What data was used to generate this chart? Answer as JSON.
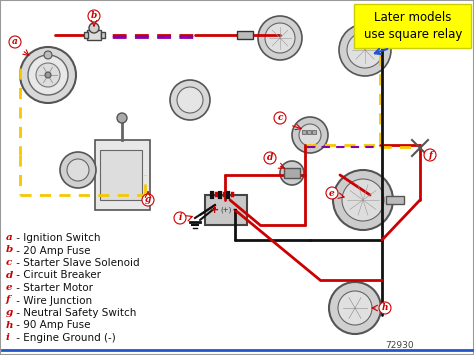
{
  "background_color": "#f5f5f0",
  "note_box_color": "#ffff00",
  "note_text": "Later models\nuse square relay",
  "note_text_color": "#000000",
  "legend_items": [
    "a - Ignition Switch",
    "b - 20 Amp Fuse",
    "c - Starter Slave Solenoid",
    "d - Circuit Breaker",
    "e - Starter Motor",
    "f - Wire Junction",
    "g - Neutral Safety Switch",
    "h - 90 Amp Fuse",
    "i - Engine Ground (-)"
  ],
  "wire_red": "#cc0000",
  "wire_yellow": "#f5c800",
  "wire_purple": "#8800aa",
  "wire_black": "#111111",
  "wire_blue": "#2255cc",
  "label_color": "#cc0000",
  "label_font_size": 7.5,
  "diagram_number": "72930",
  "fig_width": 4.74,
  "fig_height": 3.55,
  "dpi": 100
}
